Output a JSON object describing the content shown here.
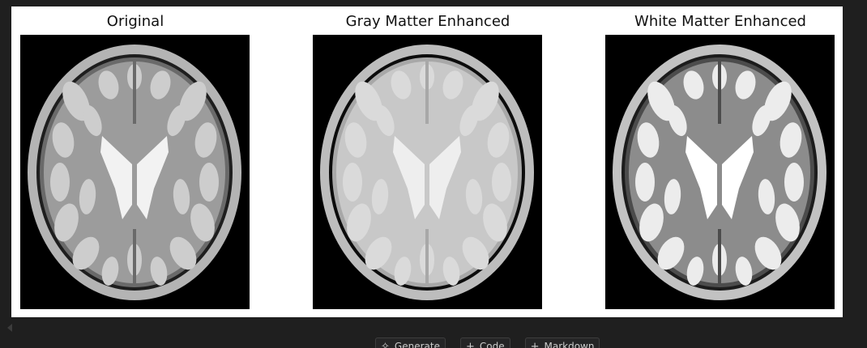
{
  "output_figure": {
    "panels": [
      {
        "title": "Original",
        "variant": "original"
      },
      {
        "title": "Gray Matter Enhanced",
        "variant": "gray"
      },
      {
        "title": "White Matter Enhanced",
        "variant": "white"
      }
    ]
  },
  "cell_toolbar": {
    "generate_label": "Generate",
    "generate_icon": "sparkle-icon",
    "code_label": "Code",
    "code_icon": "plus-icon",
    "markdown_label": "Markdown",
    "markdown_icon": "plus-icon"
  },
  "colors": {
    "editor_bg": "#1f1f1f",
    "output_bg": "#ffffff",
    "button_bg": "#252526",
    "button_border": "#3e3e3e",
    "button_text": "#cccccc"
  }
}
